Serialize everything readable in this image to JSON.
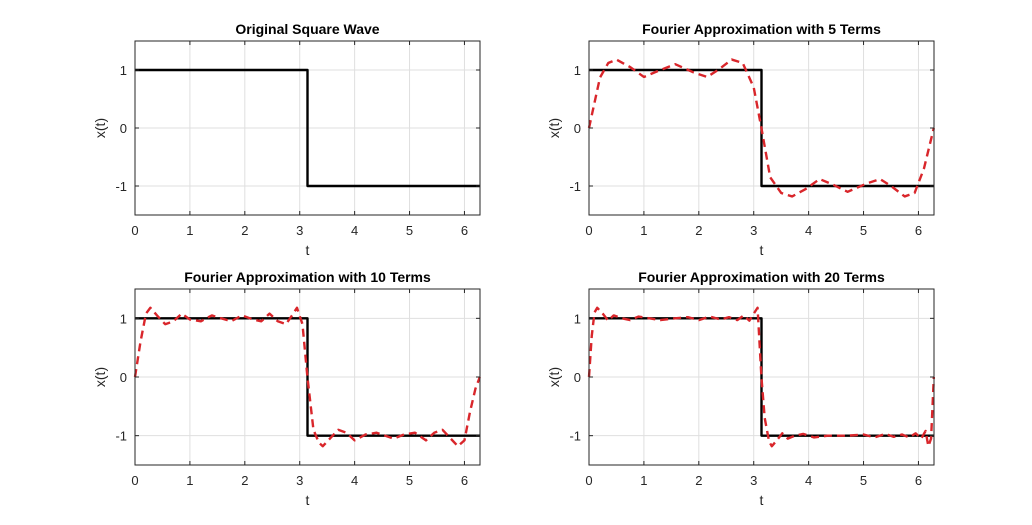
{
  "chart_data": [
    {
      "type": "line",
      "title": "Original Square Wave",
      "xlabel": "t",
      "ylabel": "x(t)",
      "xlim": [
        0,
        6.2832
      ],
      "ylim": [
        -1.5,
        1.5
      ],
      "xticks": [
        "0",
        "1",
        "2",
        "3",
        "4",
        "5",
        "6"
      ],
      "yticks": [
        "-1",
        "0",
        "1"
      ],
      "grid": true,
      "series": [
        {
          "style": "solid",
          "color": "#000000",
          "x": [
            0,
            3.1416,
            3.1416,
            6.2832
          ],
          "y": [
            1,
            1,
            -1,
            -1
          ]
        }
      ]
    },
    {
      "type": "line",
      "title": "Fourier Approximation with 5 Terms",
      "xlabel": "t",
      "ylabel": "x(t)",
      "xlim": [
        0,
        6.2832
      ],
      "ylim": [
        -1.5,
        1.5
      ],
      "xticks": [
        "0",
        "1",
        "2",
        "3",
        "4",
        "5",
        "6"
      ],
      "yticks": [
        "-1",
        "0",
        "1"
      ],
      "grid": true,
      "series": [
        {
          "style": "solid",
          "color": "#000000",
          "x": [
            0,
            3.1416,
            3.1416,
            6.2832
          ],
          "y": [
            1,
            1,
            -1,
            -1
          ]
        },
        {
          "style": "dashed",
          "color": "#D9262B",
          "harmonics": 5,
          "x": [
            0,
            0.2,
            0.35,
            0.5,
            0.75,
            1.0,
            1.25,
            1.57,
            1.9,
            2.15,
            2.35,
            2.6,
            2.8,
            3.0,
            3.14,
            3.3,
            3.5,
            3.7,
            3.95,
            4.2,
            4.45,
            4.71,
            5.05,
            5.3,
            5.5,
            5.75,
            5.93,
            6.1,
            6.28
          ],
          "y": [
            0,
            0.87,
            1.12,
            1.18,
            1.05,
            0.88,
            0.98,
            1.1,
            0.96,
            0.88,
            1.0,
            1.18,
            1.12,
            0.7,
            0,
            -0.85,
            -1.12,
            -1.18,
            -1.05,
            -0.88,
            -0.98,
            -1.1,
            -0.96,
            -0.88,
            -1.0,
            -1.18,
            -1.12,
            -0.7,
            0
          ]
        }
      ]
    },
    {
      "type": "line",
      "title": "Fourier Approximation with 10 Terms",
      "xlabel": "t",
      "ylabel": "x(t)",
      "xlim": [
        0,
        6.2832
      ],
      "ylim": [
        -1.5,
        1.5
      ],
      "xticks": [
        "0",
        "1",
        "2",
        "3",
        "4",
        "5",
        "6"
      ],
      "yticks": [
        "-1",
        "0",
        "1"
      ],
      "grid": true,
      "series": [
        {
          "style": "solid",
          "color": "#000000",
          "x": [
            0,
            3.1416,
            3.1416,
            6.2832
          ],
          "y": [
            1,
            1,
            -1,
            -1
          ]
        },
        {
          "style": "dashed",
          "color": "#D9262B",
          "harmonics": 10,
          "x": [
            0,
            0.1,
            0.2,
            0.28,
            0.4,
            0.55,
            0.7,
            0.85,
            1.0,
            1.2,
            1.4,
            1.57,
            1.75,
            1.95,
            2.15,
            2.3,
            2.45,
            2.6,
            2.75,
            2.86,
            2.95,
            3.05,
            3.14,
            3.25,
            3.35,
            3.42,
            3.55,
            3.7,
            3.85,
            4.0,
            4.2,
            4.4,
            4.71,
            4.9,
            5.1,
            5.3,
            5.45,
            5.6,
            5.75,
            5.88,
            6.0,
            6.1,
            6.2,
            6.28
          ],
          "y": [
            0,
            0.6,
            1.08,
            1.18,
            1.05,
            0.9,
            0.95,
            1.08,
            0.98,
            0.95,
            1.05,
            1.0,
            0.95,
            1.05,
            0.98,
            0.95,
            1.08,
            0.95,
            0.9,
            1.05,
            1.18,
            0.9,
            0,
            -0.9,
            -1.12,
            -1.18,
            -1.05,
            -0.9,
            -0.95,
            -1.08,
            -0.98,
            -0.95,
            -1.05,
            -0.98,
            -0.95,
            -1.08,
            -0.95,
            -0.9,
            -1.05,
            -1.18,
            -1.08,
            -0.6,
            -0.2,
            0
          ]
        }
      ]
    },
    {
      "type": "line",
      "title": "Fourier Approximation with 20 Terms",
      "xlabel": "t",
      "ylabel": "x(t)",
      "xlim": [
        0,
        6.2832
      ],
      "ylim": [
        -1.5,
        1.5
      ],
      "xticks": [
        "0",
        "1",
        "2",
        "3",
        "4",
        "5",
        "6"
      ],
      "yticks": [
        "-1",
        "0",
        "1"
      ],
      "grid": true,
      "series": [
        {
          "style": "solid",
          "color": "#000000",
          "x": [
            0,
            3.1416,
            3.1416,
            6.2832
          ],
          "y": [
            1,
            1,
            -1,
            -1
          ]
        },
        {
          "style": "dashed",
          "color": "#D9262B",
          "harmonics": 20,
          "x": [
            0,
            0.05,
            0.1,
            0.15,
            0.25,
            0.35,
            0.45,
            0.6,
            0.75,
            0.9,
            1.1,
            1.3,
            1.57,
            1.8,
            2.0,
            2.2,
            2.4,
            2.55,
            2.7,
            2.82,
            2.92,
            3.0,
            3.07,
            3.14,
            3.2,
            3.28,
            3.33,
            3.42,
            3.52,
            3.62,
            3.75,
            3.9,
            4.1,
            4.35,
            4.71,
            5.0,
            5.2,
            5.4,
            5.55,
            5.7,
            5.83,
            5.95,
            6.05,
            6.13,
            6.18,
            6.23,
            6.28
          ],
          "y": [
            0,
            0.7,
            1.1,
            1.18,
            1.08,
            0.96,
            1.05,
            1.0,
            0.97,
            1.03,
            1.0,
            0.97,
            1.0,
            1.02,
            0.97,
            1.03,
            0.98,
            1.02,
            0.97,
            1.05,
            0.96,
            1.08,
            1.18,
            0,
            -0.7,
            -1.1,
            -1.18,
            -1.08,
            -0.96,
            -1.05,
            -1.0,
            -0.97,
            -1.03,
            -1.0,
            -1.0,
            -0.98,
            -1.03,
            -0.97,
            -1.02,
            -0.98,
            -1.03,
            -0.96,
            -1.05,
            -0.92,
            -1.18,
            -1.05,
            0
          ]
        }
      ]
    }
  ]
}
